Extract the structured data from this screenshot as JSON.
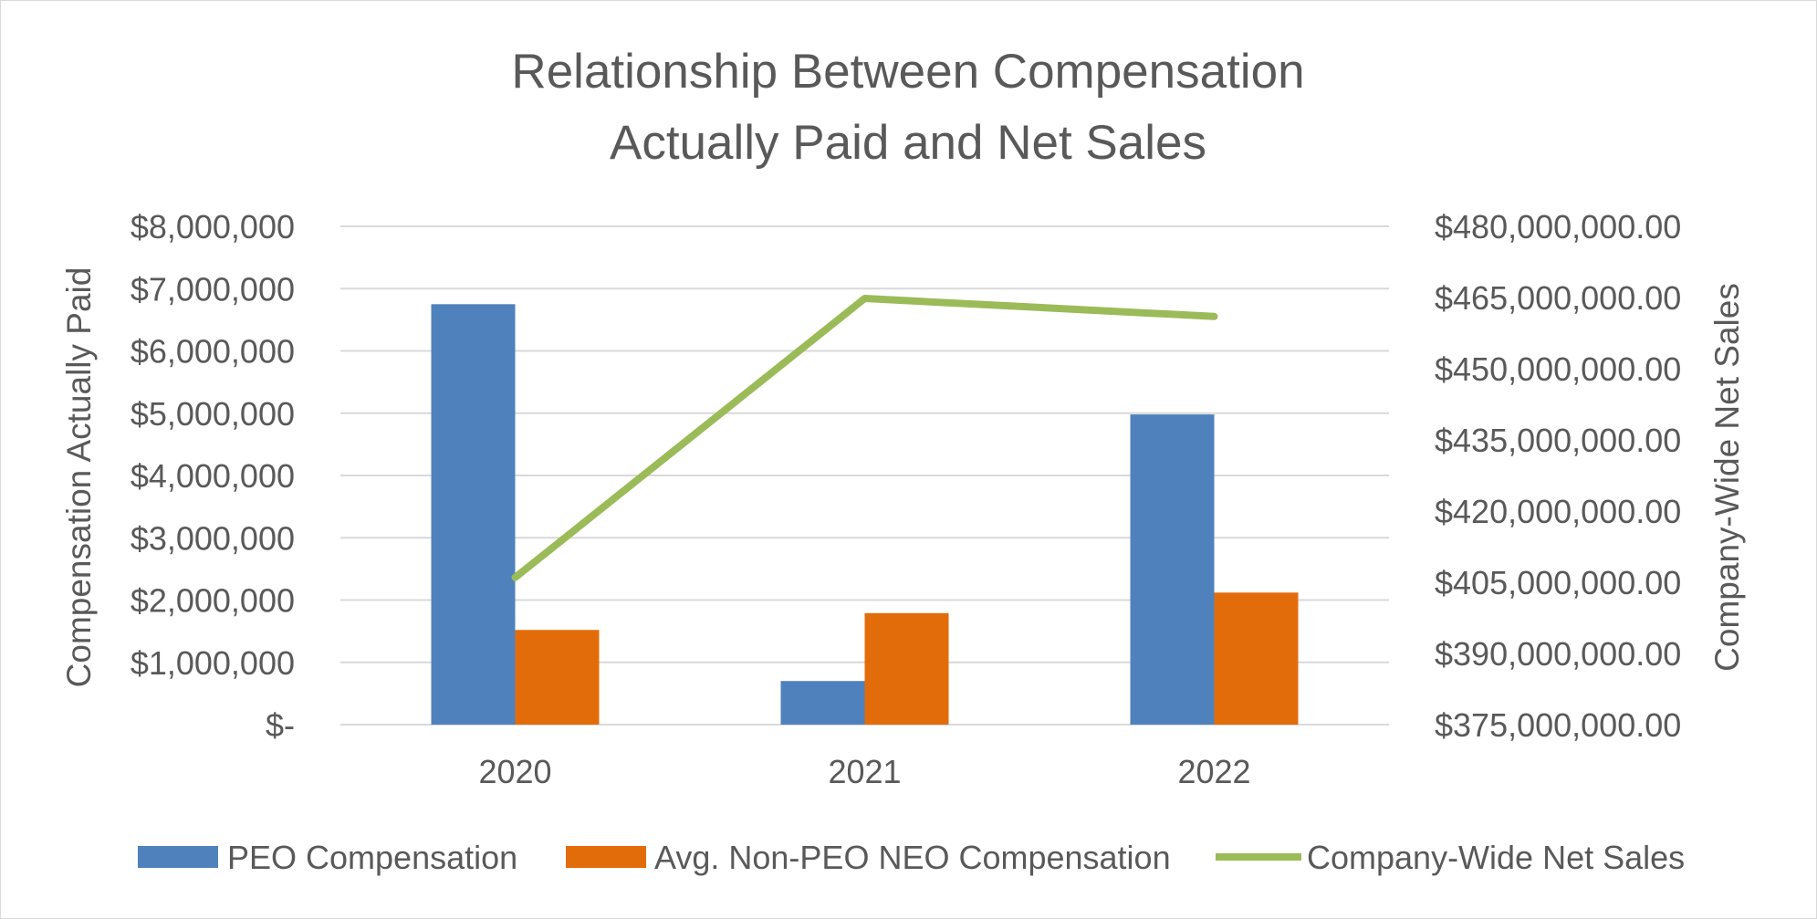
{
  "chart_data": {
    "type": "bar",
    "title": [
      "Relationship Between Compensation",
      "Actually Paid and Net Sales"
    ],
    "categories": [
      "2020",
      "2021",
      "2022"
    ],
    "ylabel": "Compensation Actually Paid",
    "y2label": "Company-Wide Net Sales",
    "ylim": [
      0,
      8000000
    ],
    "y2lim": [
      375000000,
      480000000
    ],
    "yticks": [
      "$8,000,000",
      "$7,000,000",
      "$6,000,000",
      "$5,000,000",
      "$4,000,000",
      "$3,000,000",
      "$2,000,000",
      "$1,000,000",
      "$-"
    ],
    "y2ticks": [
      "$480,000,000.00",
      "$465,000,000.00",
      "$450,000,000.00",
      "$435,000,000.00",
      "$420,000,000.00",
      "$405,000,000.00",
      "$390,000,000.00",
      "$375,000,000.00"
    ],
    "grid": true,
    "legend_position": "bottom",
    "series": [
      {
        "name": "PEO Compensation",
        "type": "bar",
        "axis": "left",
        "color": "#4f81bd",
        "values": [
          6750000,
          700000,
          4980000
        ]
      },
      {
        "name": "Avg. Non-PEO NEO Compensation",
        "type": "bar",
        "axis": "left",
        "color": "#e36c0a",
        "values": [
          1520000,
          1790000,
          2120000
        ]
      },
      {
        "name": "Company-Wide Net Sales",
        "type": "line",
        "axis": "right",
        "color": "#9bbb59",
        "values": [
          406000000,
          464800000,
          461000000
        ]
      }
    ]
  }
}
